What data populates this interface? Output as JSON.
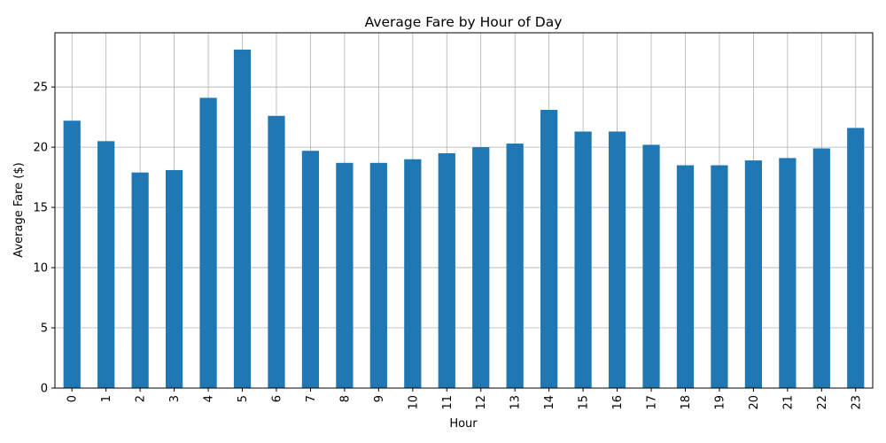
{
  "chart_data": {
    "type": "bar",
    "title": "Average Fare by Hour of Day",
    "xlabel": "Hour",
    "ylabel": "Average Fare ($)",
    "categories": [
      "0",
      "1",
      "2",
      "3",
      "4",
      "5",
      "6",
      "7",
      "8",
      "9",
      "10",
      "11",
      "12",
      "13",
      "14",
      "15",
      "16",
      "17",
      "18",
      "19",
      "20",
      "21",
      "22",
      "23"
    ],
    "series": [
      {
        "values": [
          22.2,
          20.5,
          17.9,
          18.1,
          24.1,
          28.1,
          22.6,
          19.7,
          18.7,
          18.7,
          19.0,
          19.5,
          20.0,
          20.3,
          23.1,
          21.3,
          21.3,
          20.2,
          18.5,
          18.5,
          18.9,
          19.1,
          19.9,
          21.6
        ]
      }
    ],
    "ylim": [
      0,
      29.5
    ],
    "yticks": [
      0,
      5,
      10,
      15,
      20,
      25
    ],
    "grid": true,
    "bar_color": "#1f77b4",
    "x_tick_rotation": "vertical"
  }
}
